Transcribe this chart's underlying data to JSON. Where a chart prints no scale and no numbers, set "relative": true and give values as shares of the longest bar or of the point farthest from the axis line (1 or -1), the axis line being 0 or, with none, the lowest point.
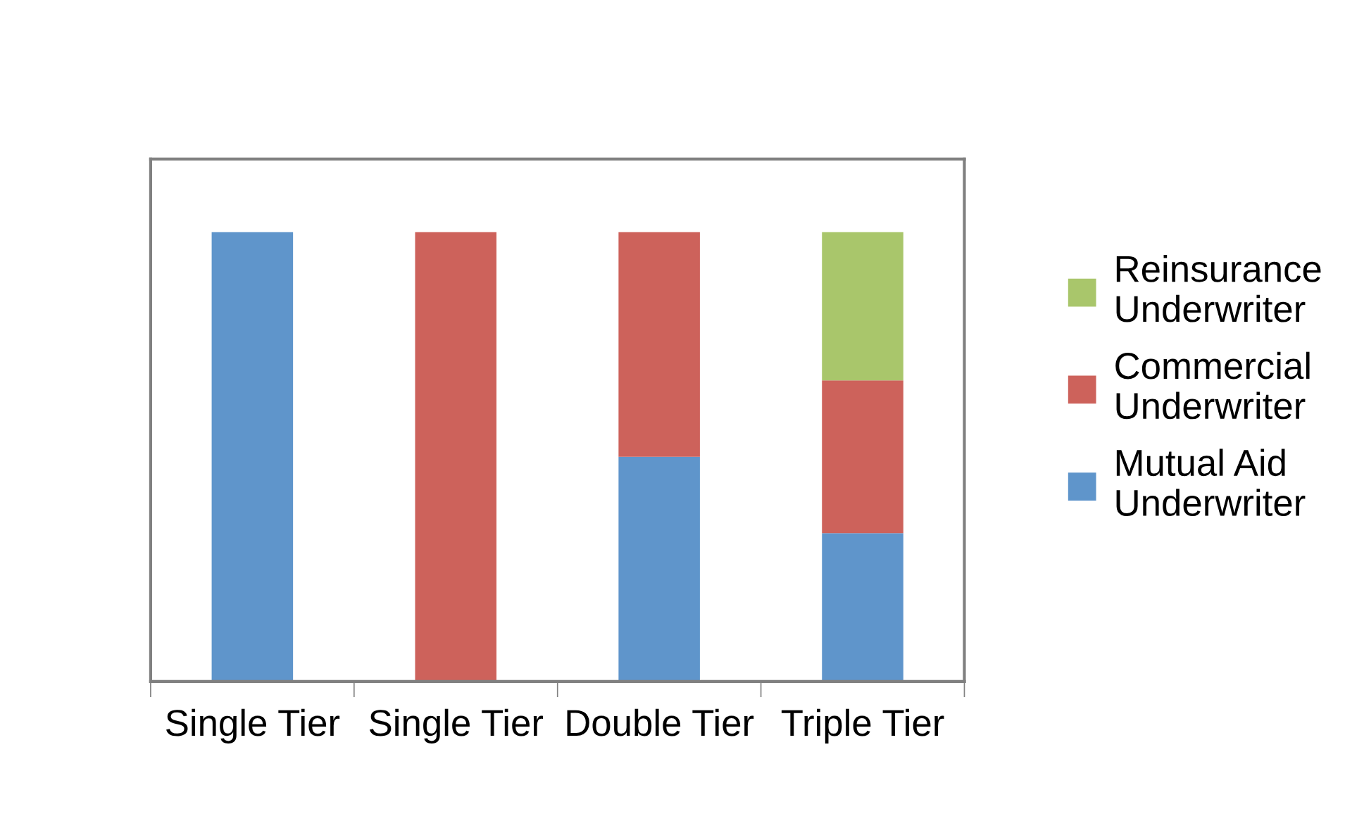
{
  "chart_data": {
    "type": "bar",
    "stacked": true,
    "relative": true,
    "categories": [
      "Single Tier",
      "Single Tier",
      "Double Tier",
      "Triple Tier"
    ],
    "series": [
      {
        "name": "Mutual Aid Underwriter",
        "color": "#5f95cb",
        "values": [
          1,
          null,
          0.5,
          0.33
        ]
      },
      {
        "name": "Commercial Underwriter",
        "color": "#cd625b",
        "values": [
          null,
          1,
          0.5,
          0.34
        ]
      },
      {
        "name": "Reinsurance Underwriter",
        "color": "#a9c66b",
        "values": [
          null,
          null,
          null,
          0.33
        ]
      }
    ],
    "legend": "right",
    "grid": false
  }
}
